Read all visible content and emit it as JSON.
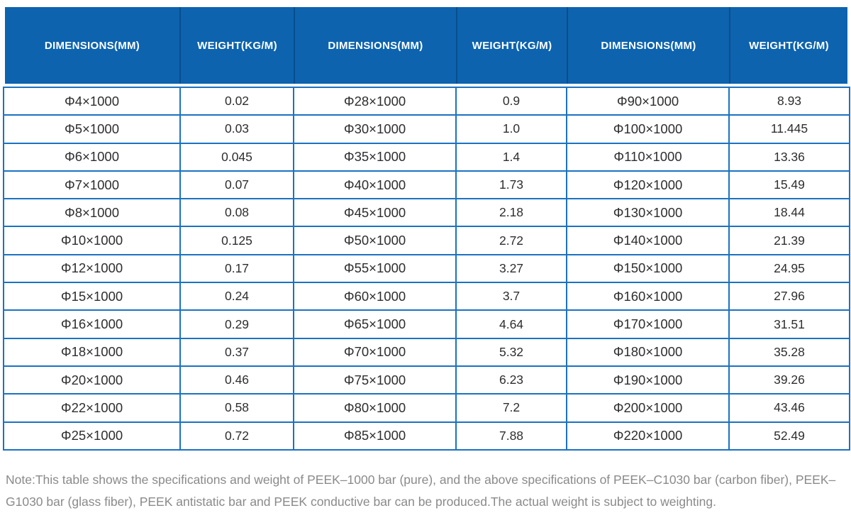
{
  "table": {
    "header": [
      "DIMENSIONS(MM)",
      "WEIGHT(KG/M)",
      "DIMENSIONS(MM)",
      "WEIGHT(KG/M)",
      "DIMENSIONS(MM)",
      "WEIGHT(KG/M)"
    ],
    "rows": [
      [
        "Φ4×1000",
        "0.02",
        "Φ28×1000",
        "0.9",
        "Φ90×1000",
        "8.93"
      ],
      [
        "Φ5×1000",
        "0.03",
        "Φ30×1000",
        "1.0",
        "Φ100×1000",
        "11.445"
      ],
      [
        "Φ6×1000",
        "0.045",
        "Φ35×1000",
        "1.4",
        "Φ110×1000",
        "13.36"
      ],
      [
        "Φ7×1000",
        "0.07",
        "Φ40×1000",
        "1.73",
        "Φ120×1000",
        "15.49"
      ],
      [
        "Φ8×1000",
        "0.08",
        "Φ45×1000",
        "2.18",
        "Φ130×1000",
        "18.44"
      ],
      [
        "Φ10×1000",
        "0.125",
        "Φ50×1000",
        "2.72",
        "Φ140×1000",
        "21.39"
      ],
      [
        "Φ12×1000",
        "0.17",
        "Φ55×1000",
        "3.27",
        "Φ150×1000",
        "24.95"
      ],
      [
        "Φ15×1000",
        "0.24",
        "Φ60×1000",
        "3.7",
        "Φ160×1000",
        "27.96"
      ],
      [
        "Φ16×1000",
        "0.29",
        "Φ65×1000",
        "4.64",
        "Φ170×1000",
        "31.51"
      ],
      [
        "Φ18×1000",
        "0.37",
        "Φ70×1000",
        "5.32",
        "Φ180×1000",
        "35.28"
      ],
      [
        "Φ20×1000",
        "0.46",
        "Φ75×1000",
        "6.23",
        "Φ190×1000",
        "39.26"
      ],
      [
        "Φ22×1000",
        "0.58",
        "Φ80×1000",
        "7.2",
        "Φ200×1000",
        "43.46"
      ],
      [
        "Φ25×1000",
        "0.72",
        "Φ85×1000",
        "7.88",
        "Φ220×1000",
        "52.49"
      ]
    ],
    "colors": {
      "header_bg": "#0d63ae",
      "header_divider": "#0a4d8c",
      "body_border": "#1b72c1",
      "body_text": "#2e2e2e",
      "note_text": "#8a8a8a"
    }
  },
  "note": "Note:This table shows the specifications and weight of PEEK–1000 bar (pure), and the above specifications of PEEK–C1030 bar (carbon fiber), PEEK–G1030 bar (glass fiber), PEEK antistatic bar and PEEK conductive bar can be produced.The actual weight is subject to weighting."
}
